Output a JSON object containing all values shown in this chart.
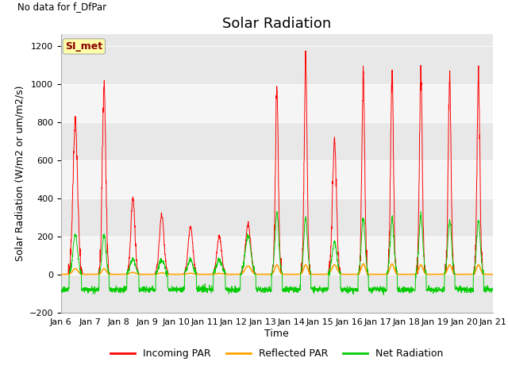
{
  "title": "Solar Radiation",
  "no_data_text": "No data for f_DfPar",
  "legend_station": "SI_met",
  "ylabel": "Solar Radiation (W/m2 or um/m2/s)",
  "xlabel": "Time",
  "ylim": [
    -200,
    1260
  ],
  "yticks": [
    -200,
    0,
    200,
    400,
    600,
    800,
    1000,
    1200
  ],
  "x_tick_labels": [
    "Jan 6",
    "Jan 7",
    "Jan 8",
    "Jan 9",
    "Jan 10",
    "Jan 11",
    "Jan 12",
    "Jan 13",
    "Jan 14",
    "Jan 15",
    "Jan 16",
    "Jan 17",
    "Jan 18",
    "Jan 19",
    "Jan 20",
    "Jan 21"
  ],
  "bg_color": "#e8e8e8",
  "stripe_color": "#f5f5f5",
  "line_colors": {
    "incoming": "#ff0000",
    "reflected": "#ffa500",
    "net": "#00cc00"
  },
  "legend_labels": [
    "Incoming PAR",
    "Reflected PAR",
    "Net Radiation"
  ],
  "legend_colors": [
    "#ff0000",
    "#ffa500",
    "#00cc00"
  ],
  "title_fontsize": 13,
  "label_fontsize": 9,
  "tick_fontsize": 8,
  "incoming_peaks": [
    800,
    1000,
    400,
    310,
    250,
    205,
    265,
    980,
    1100,
    700,
    1050,
    1060,
    1060,
    1040,
    1030
  ],
  "incoming_widths": [
    0.08,
    0.06,
    0.07,
    0.08,
    0.08,
    0.08,
    0.09,
    0.05,
    0.05,
    0.07,
    0.05,
    0.05,
    0.05,
    0.05,
    0.05
  ],
  "net_peaks": [
    210,
    210,
    80,
    80,
    80,
    80,
    200,
    320,
    290,
    170,
    290,
    290,
    310,
    280,
    280
  ],
  "net_widths": [
    0.08,
    0.065,
    0.09,
    0.09,
    0.09,
    0.09,
    0.1,
    0.065,
    0.065,
    0.08,
    0.065,
    0.065,
    0.065,
    0.065,
    0.065
  ],
  "net_neg_base": -80,
  "reflected_peaks": [
    30,
    30,
    10,
    8,
    6,
    5,
    45,
    50,
    50,
    50,
    55,
    55,
    50,
    50,
    50
  ],
  "reflected_widths": [
    0.09,
    0.07,
    0.09,
    0.09,
    0.09,
    0.09,
    0.1,
    0.07,
    0.07,
    0.09,
    0.07,
    0.07,
    0.07,
    0.07,
    0.07
  ]
}
